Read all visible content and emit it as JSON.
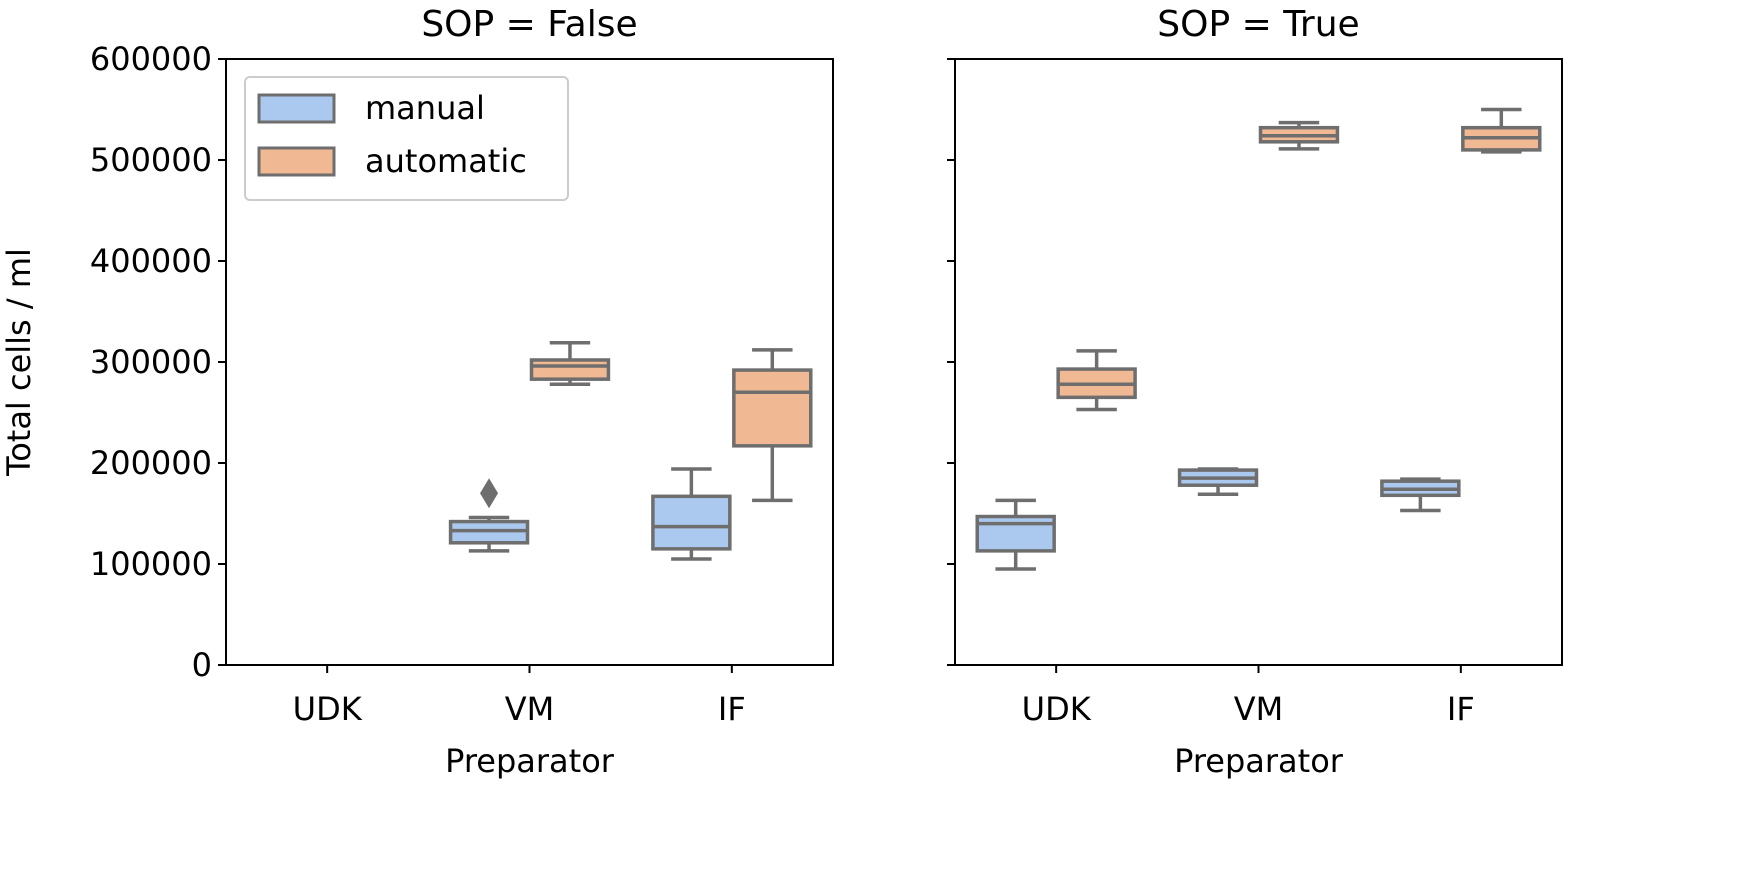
{
  "chart_data": {
    "type": "box",
    "ylabel": "Total cells / ml",
    "ylim": [
      0,
      600000
    ],
    "yticks": [
      "0",
      "100000",
      "200000",
      "300000",
      "400000",
      "500000",
      "600000"
    ],
    "ytick_values": [
      0,
      100000,
      200000,
      300000,
      400000,
      500000,
      600000
    ],
    "categories": [
      "UDK",
      "VM",
      "IF"
    ],
    "legend": {
      "placement": "top-left",
      "entries": [
        "manual",
        "automatic"
      ]
    },
    "colors": {
      "manual": "#abc9ee",
      "automatic": "#f0b893",
      "edge": "#6e6e6e"
    },
    "panels": [
      {
        "title": "SOP = False",
        "xlabel": "Preparator",
        "boxes": [
          {
            "category": "VM",
            "hue": "manual",
            "whislo": 113000,
            "q1": 121000,
            "med": 133000,
            "q3": 142000,
            "whishi": 146000,
            "fliers": [
              170000
            ]
          },
          {
            "category": "VM",
            "hue": "automatic",
            "whislo": 278000,
            "q1": 283000,
            "med": 296000,
            "q3": 302000,
            "whishi": 319000,
            "fliers": []
          },
          {
            "category": "IF",
            "hue": "manual",
            "whislo": 105000,
            "q1": 115000,
            "med": 137000,
            "q3": 167000,
            "whishi": 194000,
            "fliers": []
          },
          {
            "category": "IF",
            "hue": "automatic",
            "whislo": 163000,
            "q1": 217000,
            "med": 270000,
            "q3": 292000,
            "whishi": 312000,
            "fliers": []
          }
        ]
      },
      {
        "title": "SOP = True",
        "xlabel": "Preparator",
        "boxes": [
          {
            "category": "UDK",
            "hue": "manual",
            "whislo": 95000,
            "q1": 113000,
            "med": 140000,
            "q3": 147000,
            "whishi": 163000,
            "fliers": []
          },
          {
            "category": "UDK",
            "hue": "automatic",
            "whislo": 253000,
            "q1": 265000,
            "med": 278000,
            "q3": 293000,
            "whishi": 311000,
            "fliers": []
          },
          {
            "category": "VM",
            "hue": "manual",
            "whislo": 169000,
            "q1": 178000,
            "med": 185000,
            "q3": 193000,
            "whishi": 194000,
            "fliers": []
          },
          {
            "category": "VM",
            "hue": "automatic",
            "whislo": 511000,
            "q1": 518000,
            "med": 524000,
            "q3": 532000,
            "whishi": 537000,
            "fliers": []
          },
          {
            "category": "IF",
            "hue": "manual",
            "whislo": 153000,
            "q1": 168000,
            "med": 174000,
            "q3": 182000,
            "whishi": 184000,
            "fliers": []
          },
          {
            "category": "IF",
            "hue": "automatic",
            "whislo": 508000,
            "q1": 510000,
            "med": 522000,
            "q3": 532000,
            "whishi": 550000,
            "fliers": []
          }
        ]
      }
    ]
  }
}
